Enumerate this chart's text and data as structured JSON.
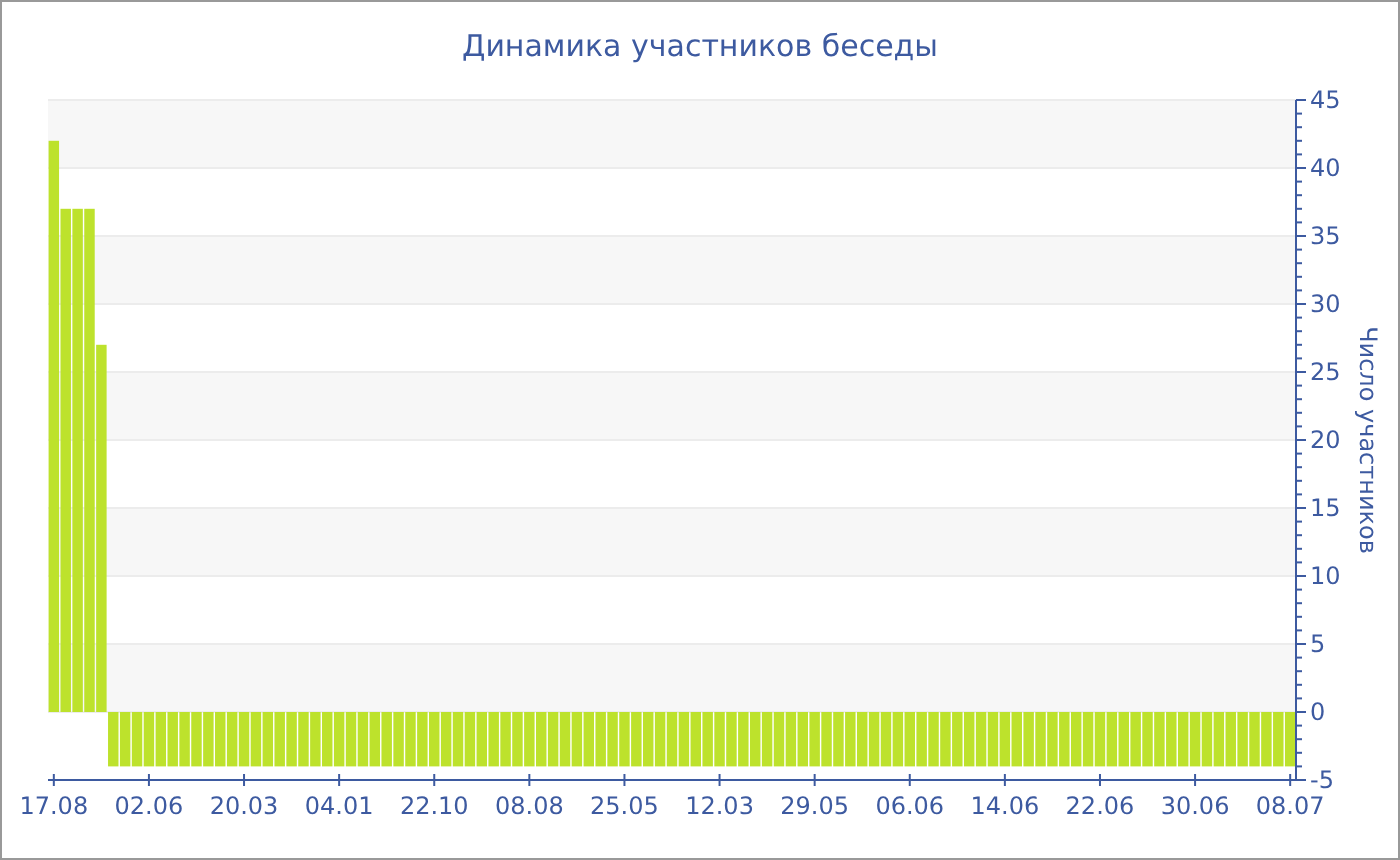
{
  "chart_data": {
    "type": "bar",
    "title": "Динамика участников беседы",
    "ylabel": "Число участников",
    "categories": [
      "17.08",
      null,
      null,
      null,
      null,
      null,
      null,
      null,
      "02.06",
      null,
      null,
      null,
      null,
      null,
      null,
      null,
      "20.03",
      null,
      null,
      null,
      null,
      null,
      null,
      null,
      "04.01",
      null,
      null,
      null,
      null,
      null,
      null,
      null,
      "22.10",
      null,
      null,
      null,
      null,
      null,
      null,
      null,
      "08.08",
      null,
      null,
      null,
      null,
      null,
      null,
      null,
      "25.05",
      null,
      null,
      null,
      null,
      null,
      null,
      null,
      "12.03",
      null,
      null,
      null,
      null,
      null,
      null,
      null,
      "29.05",
      null,
      null,
      null,
      null,
      null,
      null,
      null,
      "06.06",
      null,
      null,
      null,
      null,
      null,
      null,
      null,
      "14.06",
      null,
      null,
      null,
      null,
      null,
      null,
      null,
      "22.06",
      null,
      null,
      null,
      null,
      null,
      null,
      null,
      "30.06",
      null,
      null,
      null,
      null,
      null,
      null,
      null,
      "08.07"
    ],
    "values": [
      42,
      37,
      37,
      37,
      27,
      -4,
      -4,
      -4,
      -4,
      -4,
      -4,
      -4,
      -4,
      -4,
      -4,
      -4,
      -4,
      -4,
      -4,
      -4,
      -4,
      -4,
      -4,
      -4,
      -4,
      -4,
      -4,
      -4,
      -4,
      -4,
      -4,
      -4,
      -4,
      -4,
      -4,
      -4,
      -4,
      -4,
      -4,
      -4,
      -4,
      -4,
      -4,
      -4,
      -4,
      -4,
      -4,
      -4,
      -4,
      -4,
      -4,
      -4,
      -4,
      -4,
      -4,
      -4,
      -4,
      -4,
      -4,
      -4,
      -4,
      -4,
      -4,
      -4,
      -4,
      -4,
      -4,
      -4,
      -4,
      -4,
      -4,
      -4,
      -4,
      -4,
      -4,
      -4,
      -4,
      -4,
      -4,
      -4,
      -4,
      -4,
      -4,
      -4,
      -4,
      -4,
      -4,
      -4,
      -4,
      -4,
      -4,
      -4,
      -4,
      -4,
      -4,
      -4,
      -4,
      -4,
      -4,
      -4,
      -4,
      -4,
      -4,
      -4,
      -4
    ],
    "color": "#bde22c",
    "ylim": [
      -5,
      45
    ],
    "yticks": [
      -5,
      0,
      5,
      10,
      15,
      20,
      25,
      30,
      35,
      40,
      45
    ],
    "grid": "y"
  }
}
